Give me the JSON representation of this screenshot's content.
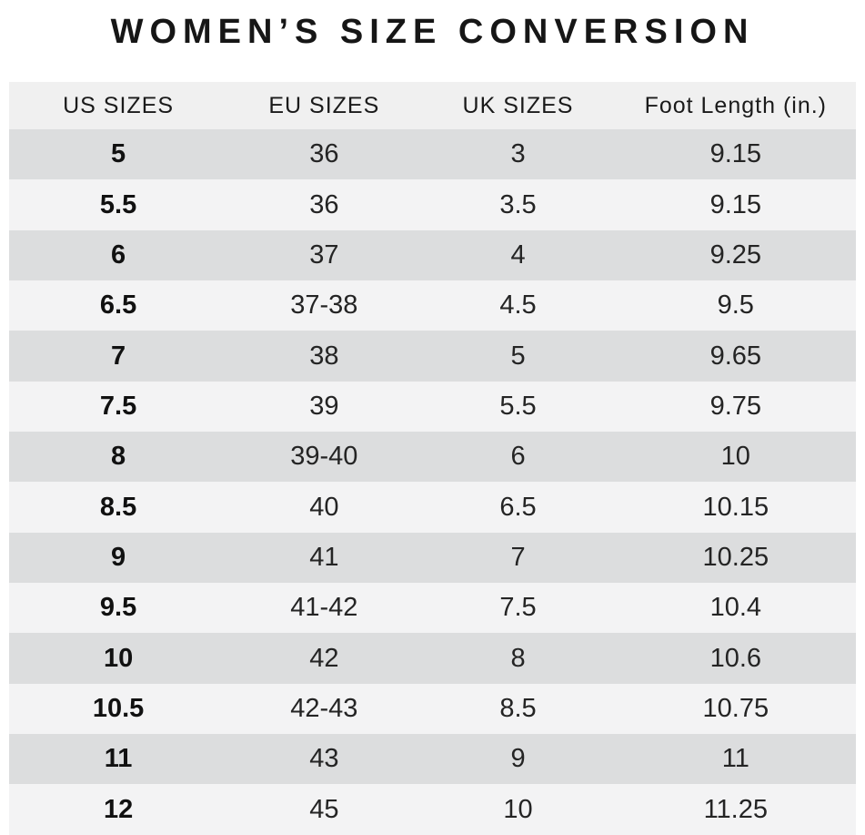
{
  "title": "WOMEN’S SIZE CONVERSION",
  "chart_data": {
    "type": "table",
    "title": "WOMEN’S SIZE CONVERSION",
    "columns": [
      "US SIZES",
      "EU SIZES",
      "UK SIZES",
      "Foot Length (in.)"
    ],
    "rows": [
      [
        "5",
        "36",
        "3",
        "9.15"
      ],
      [
        "5.5",
        "36",
        "3.5",
        "9.15"
      ],
      [
        "6",
        "37",
        "4",
        "9.25"
      ],
      [
        "6.5",
        "37-38",
        "4.5",
        "9.5"
      ],
      [
        "7",
        "38",
        "5",
        "9.65"
      ],
      [
        "7.5",
        "39",
        "5.5",
        "9.75"
      ],
      [
        "8",
        "39-40",
        "6",
        "10"
      ],
      [
        "8.5",
        "40",
        "6.5",
        "10.15"
      ],
      [
        "9",
        "41",
        "7",
        "10.25"
      ],
      [
        "9.5",
        "41-42",
        "7.5",
        "10.4"
      ],
      [
        "10",
        "42",
        "8",
        "10.6"
      ],
      [
        "10.5",
        "42-43",
        "8.5",
        "10.75"
      ],
      [
        "11",
        "43",
        "9",
        "11"
      ],
      [
        "12",
        "45",
        "10",
        "11.25"
      ]
    ],
    "layout": {
      "alternating_rows": true,
      "bold_first_column": true
    }
  },
  "colors": {
    "header_bg": "#f0f0f0",
    "row_dark": "#dcddde",
    "row_light": "#f3f3f4",
    "text": "#1f1f1f",
    "page_bg": "#ffffff"
  }
}
